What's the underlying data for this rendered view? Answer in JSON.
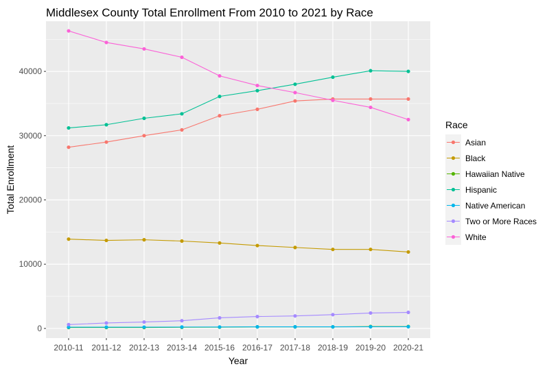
{
  "chart_data": {
    "type": "line",
    "title": "Middlesex County Total Enrollment From 2010 to 2021 by Race",
    "xlabel": "Year",
    "ylabel": "Total Enrollment",
    "categories": [
      "2010-11",
      "2011-12",
      "2012-13",
      "2013-14",
      "2015-16",
      "2016-17",
      "2017-18",
      "2018-19",
      "2019-20",
      "2020-21"
    ],
    "ylim": [
      -1500,
      47800
    ],
    "yticks": [
      0,
      10000,
      20000,
      30000,
      40000
    ],
    "ytick_labels": [
      "0",
      "10000",
      "20000",
      "30000",
      "40000"
    ],
    "grid": true,
    "legend": {
      "title": "Race",
      "position": "right"
    },
    "series": [
      {
        "name": "Asian",
        "color": "#F8766D",
        "values": [
          28200,
          29000,
          30000,
          30900,
          33100,
          34100,
          35400,
          35700,
          35700,
          35700
        ]
      },
      {
        "name": "Black",
        "color": "#C49A00",
        "values": [
          13900,
          13700,
          13800,
          13600,
          13300,
          12900,
          12600,
          12300,
          12300,
          11900
        ]
      },
      {
        "name": "Hawaiian Native",
        "color": "#53B400",
        "values": [
          150,
          150,
          150,
          180,
          200,
          250,
          250,
          250,
          300,
          300
        ]
      },
      {
        "name": "Hispanic",
        "color": "#00C094",
        "values": [
          31200,
          31700,
          32700,
          33400,
          36100,
          37000,
          38000,
          39100,
          40100,
          40000
        ]
      },
      {
        "name": "Native American",
        "color": "#00B6EB",
        "values": [
          200,
          200,
          200,
          220,
          230,
          250,
          250,
          250,
          260,
          270
        ]
      },
      {
        "name": "Two or More Races",
        "color": "#A58AFF",
        "values": [
          600,
          850,
          1000,
          1200,
          1650,
          1850,
          1950,
          2150,
          2400,
          2500
        ]
      },
      {
        "name": "White",
        "color": "#FB61D7",
        "values": [
          46300,
          44500,
          43500,
          42200,
          39300,
          37800,
          36700,
          35500,
          34400,
          32500
        ]
      }
    ]
  }
}
